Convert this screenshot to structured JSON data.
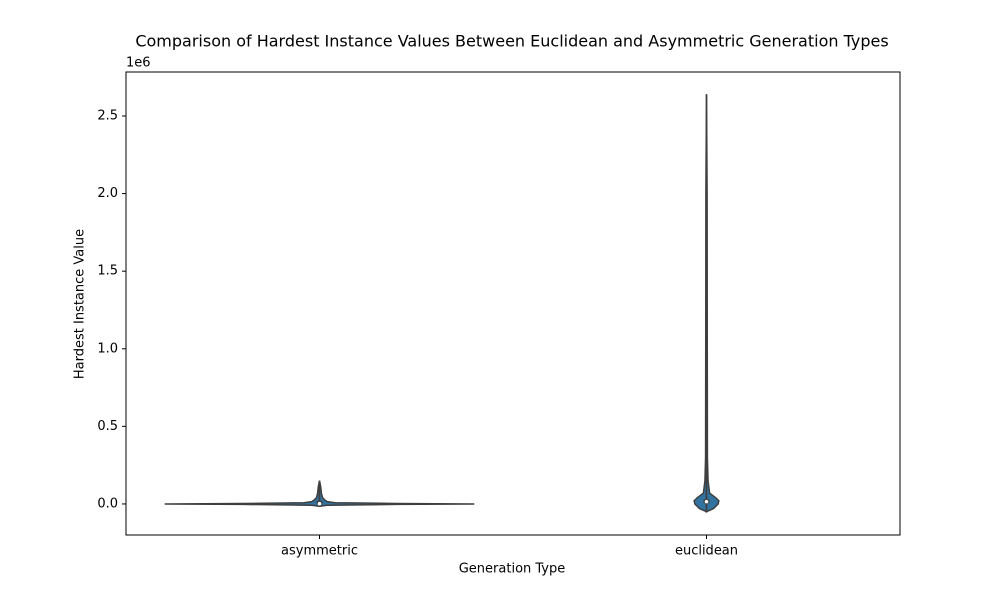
{
  "chart_data": {
    "type": "violin",
    "title": "Comparison of Hardest Instance Values Between Euclidean and Asymmetric Generation Types",
    "x_label": "Generation Type",
    "y_label": "Hardest Instance Value",
    "y_offset_label": "1e6",
    "categories": [
      "asymmetric",
      "euclidean"
    ],
    "color": "#3274a1",
    "edge_color": "#3f3f3f",
    "ylim": [
      -200000,
      2783500
    ],
    "yticks": [
      {
        "value": 0,
        "label": "0.0"
      },
      {
        "value": 500000,
        "label": "0.5"
      },
      {
        "value": 1000000,
        "label": "1.0"
      },
      {
        "value": 1500000,
        "label": "1.5"
      },
      {
        "value": 2000000,
        "label": "2.0"
      },
      {
        "value": 2500000,
        "label": "2.5"
      }
    ],
    "violins": [
      {
        "y": [
          -15000,
          -8000,
          -3000,
          0,
          3000,
          8000,
          15000,
          25000,
          40000,
          70000,
          110000,
          150000
        ],
        "width": [
          0,
          0.05,
          0.5,
          1,
          0.5,
          0.1,
          0.05,
          0.035,
          0.02,
          0.012,
          0.008,
          0
        ],
        "box": {
          "whisker_low": -5000,
          "q1": -2000,
          "median": 2000,
          "q3": 20000,
          "whisker_high": 50000
        }
      },
      {
        "y": [
          -50000,
          -30000,
          0,
          20000,
          40000,
          70000,
          150000,
          300000,
          1000000,
          2000000,
          2640000
        ],
        "width": [
          0,
          0.045,
          0.075,
          0.08,
          0.06,
          0.02,
          0.01,
          0.006,
          0.005,
          0.004,
          0
        ],
        "box": {
          "whisker_low": -20000,
          "q1": 5000,
          "median": 15000,
          "q3": 30000,
          "whisker_high": 70000
        }
      }
    ]
  }
}
